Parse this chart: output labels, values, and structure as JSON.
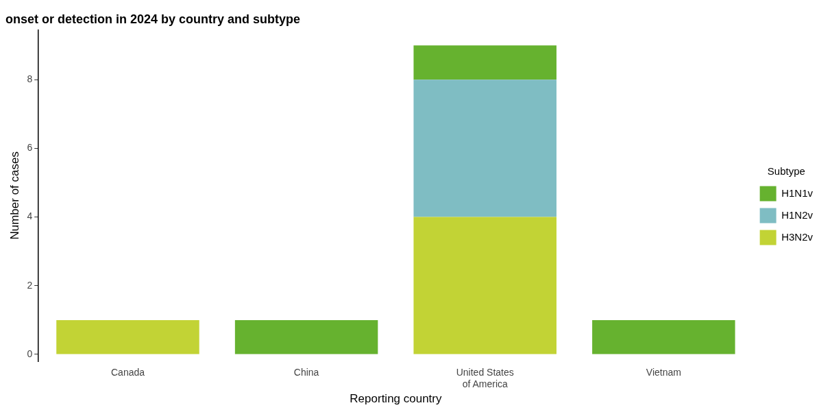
{
  "chart_data": {
    "type": "bar",
    "title": "onset or detection in 2024 by country and subtype",
    "xlabel": "Reporting country",
    "ylabel": "Number of cases",
    "legend_title": "Subtype",
    "categories": [
      "Canada",
      "China",
      "United States\nof America",
      "Vietnam"
    ],
    "stacked": true,
    "series": [
      {
        "name": "H3N2v",
        "color": "#c2d335",
        "values": [
          1,
          0,
          4,
          0
        ]
      },
      {
        "name": "H1N2v",
        "color": "#7fbdc3",
        "values": [
          0,
          0,
          4,
          0
        ]
      },
      {
        "name": "H1N1v",
        "color": "#66b22f",
        "values": [
          0,
          1,
          1,
          1
        ]
      }
    ],
    "ylim": [
      -0.2,
      9.45
    ],
    "yticks": [
      0,
      2,
      4,
      6,
      8
    ],
    "grid": false,
    "legend": "right"
  }
}
